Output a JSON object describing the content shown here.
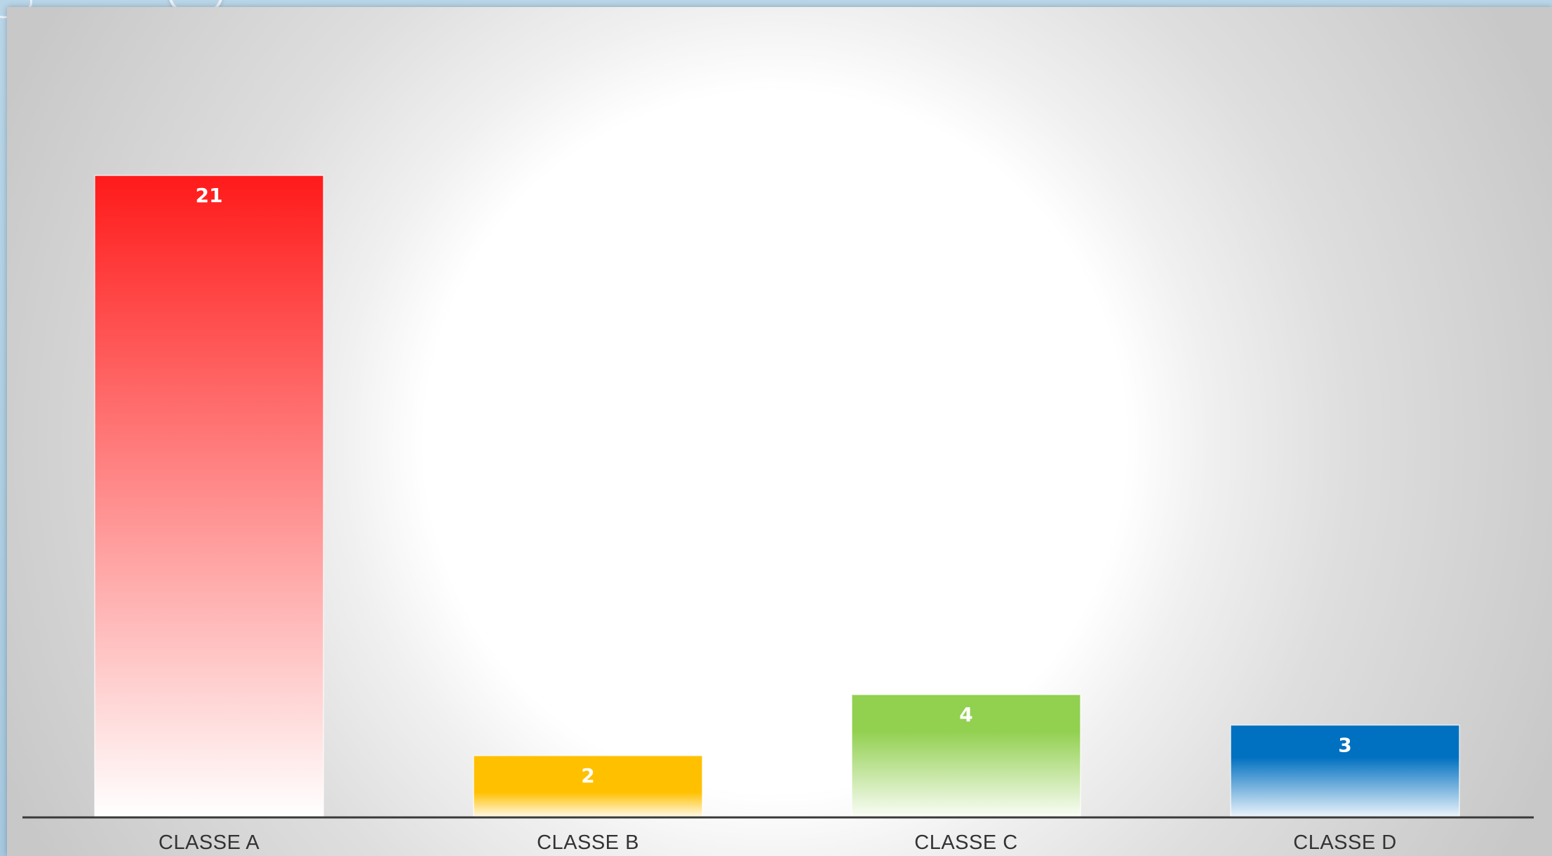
{
  "chart_data": {
    "type": "bar",
    "categories": [
      "CLASSE A",
      "CLASSE B",
      "CLASSE C",
      "CLASSE D"
    ],
    "values": [
      21,
      2,
      4,
      3
    ],
    "data_labels": [
      "21",
      "2",
      "4",
      "3"
    ],
    "colors": [
      "#ff1a1a",
      "#ffc000",
      "#92d050",
      "#0070c0"
    ],
    "title": "",
    "xlabel": "",
    "ylabel": "",
    "ylim": [
      0,
      25
    ],
    "grid": false,
    "legend": "none"
  }
}
